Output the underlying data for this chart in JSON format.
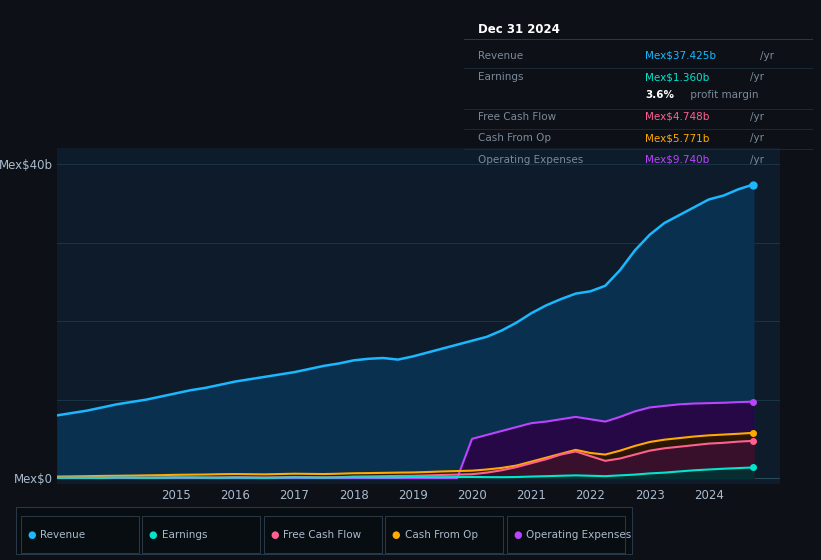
{
  "background_color": "#0d1117",
  "chart_bg_color": "#0d1b2a",
  "years": [
    2013.0,
    2013.25,
    2013.5,
    2013.75,
    2014.0,
    2014.25,
    2014.5,
    2014.75,
    2015.0,
    2015.25,
    2015.5,
    2015.75,
    2016.0,
    2016.25,
    2016.5,
    2016.75,
    2017.0,
    2017.25,
    2017.5,
    2017.75,
    2018.0,
    2018.25,
    2018.5,
    2018.75,
    2019.0,
    2019.25,
    2019.5,
    2019.75,
    2020.0,
    2020.25,
    2020.5,
    2020.75,
    2021.0,
    2021.25,
    2021.5,
    2021.75,
    2022.0,
    2022.25,
    2022.5,
    2022.75,
    2023.0,
    2023.25,
    2023.5,
    2023.75,
    2024.0,
    2024.25,
    2024.5,
    2024.75
  ],
  "revenue": [
    8.0,
    8.3,
    8.6,
    9.0,
    9.4,
    9.7,
    10.0,
    10.4,
    10.8,
    11.2,
    11.5,
    11.9,
    12.3,
    12.6,
    12.9,
    13.2,
    13.5,
    13.9,
    14.3,
    14.6,
    15.0,
    15.2,
    15.3,
    15.1,
    15.5,
    16.0,
    16.5,
    17.0,
    17.5,
    18.0,
    18.8,
    19.8,
    21.0,
    22.0,
    22.8,
    23.5,
    23.8,
    24.5,
    26.5,
    29.0,
    31.0,
    32.5,
    33.5,
    34.5,
    35.5,
    36.0,
    36.8,
    37.4
  ],
  "earnings": [
    0.05,
    0.06,
    0.05,
    0.04,
    0.08,
    0.07,
    0.05,
    0.06,
    0.08,
    0.09,
    0.07,
    0.05,
    0.07,
    0.06,
    0.04,
    0.07,
    0.1,
    0.08,
    0.07,
    0.09,
    0.12,
    0.11,
    0.1,
    0.11,
    0.15,
    0.13,
    0.12,
    0.14,
    0.15,
    0.13,
    0.12,
    0.14,
    0.2,
    0.25,
    0.3,
    0.35,
    0.3,
    0.25,
    0.35,
    0.45,
    0.6,
    0.7,
    0.85,
    1.0,
    1.1,
    1.2,
    1.28,
    1.36
  ],
  "free_cash_flow": [
    0.05,
    0.05,
    0.06,
    0.05,
    0.08,
    0.07,
    0.06,
    0.08,
    0.1,
    0.08,
    0.07,
    0.09,
    0.12,
    0.1,
    0.08,
    0.1,
    0.15,
    0.12,
    0.1,
    0.12,
    0.2,
    0.22,
    0.25,
    0.28,
    0.3,
    0.35,
    0.4,
    0.45,
    0.5,
    0.7,
    1.0,
    1.4,
    1.9,
    2.4,
    3.0,
    3.4,
    2.8,
    2.2,
    2.5,
    3.0,
    3.5,
    3.8,
    4.0,
    4.2,
    4.4,
    4.5,
    4.65,
    4.748
  ],
  "cash_from_op": [
    0.2,
    0.22,
    0.25,
    0.28,
    0.3,
    0.32,
    0.35,
    0.38,
    0.42,
    0.44,
    0.46,
    0.5,
    0.52,
    0.5,
    0.48,
    0.52,
    0.56,
    0.54,
    0.52,
    0.56,
    0.62,
    0.64,
    0.67,
    0.7,
    0.72,
    0.78,
    0.85,
    0.9,
    0.95,
    1.1,
    1.3,
    1.6,
    2.1,
    2.6,
    3.1,
    3.6,
    3.2,
    3.0,
    3.5,
    4.1,
    4.6,
    4.9,
    5.1,
    5.3,
    5.45,
    5.55,
    5.65,
    5.771
  ],
  "operating_expenses": [
    0.0,
    0.0,
    0.0,
    0.0,
    0.0,
    0.0,
    0.0,
    0.0,
    0.0,
    0.0,
    0.0,
    0.0,
    0.0,
    0.0,
    0.0,
    0.0,
    0.0,
    0.0,
    0.0,
    0.0,
    0.0,
    0.0,
    0.0,
    0.0,
    0.0,
    0.0,
    0.0,
    0.0,
    5.0,
    5.5,
    6.0,
    6.5,
    7.0,
    7.2,
    7.5,
    7.8,
    7.5,
    7.2,
    7.8,
    8.5,
    9.0,
    9.2,
    9.4,
    9.5,
    9.55,
    9.6,
    9.68,
    9.74
  ],
  "revenue_color": "#1ab8ff",
  "revenue_fill": "#0a3050",
  "earnings_color": "#00e5cc",
  "earnings_fill": "#003333",
  "free_cash_flow_color": "#ff6090",
  "free_cash_flow_fill": "#3a1030",
  "cash_from_op_color": "#ffaa00",
  "cash_from_op_fill": "#2a1800",
  "operating_expenses_color": "#bb44ff",
  "operating_expenses_fill": "#250845",
  "ylabel_top": "Mex$40b",
  "ylabel_bottom": "Mex$0",
  "xmin": 2013.0,
  "xmax": 2025.2,
  "ymin": -0.8,
  "ymax": 42.0,
  "info_box": {
    "title": "Dec 31 2024",
    "rows": [
      {
        "label": "Revenue",
        "value": "Mex$37.425b",
        "unit": "/yr",
        "color": "#1ab8ff"
      },
      {
        "label": "Earnings",
        "value": "Mex$1.360b",
        "unit": "/yr",
        "color": "#00e5cc"
      },
      {
        "label": "",
        "value": "3.6%",
        "unit": " profit margin",
        "color": "#ffffff",
        "bold_value": true
      },
      {
        "label": "Free Cash Flow",
        "value": "Mex$4.748b",
        "unit": "/yr",
        "color": "#ff6090"
      },
      {
        "label": "Cash From Op",
        "value": "Mex$5.771b",
        "unit": "/yr",
        "color": "#ffaa00"
      },
      {
        "label": "Operating Expenses",
        "value": "Mex$9.740b",
        "unit": "/yr",
        "color": "#bb44ff"
      }
    ],
    "bg_color": "#080d12",
    "border_color": "#2a3a4a",
    "title_color": "#ffffff",
    "label_color": "#7a8a9a"
  },
  "legend_items": [
    {
      "label": "Revenue",
      "color": "#1ab8ff"
    },
    {
      "label": "Earnings",
      "color": "#00e5cc"
    },
    {
      "label": "Free Cash Flow",
      "color": "#ff6090"
    },
    {
      "label": "Cash From Op",
      "color": "#ffaa00"
    },
    {
      "label": "Operating Expenses",
      "color": "#bb44ff"
    }
  ]
}
